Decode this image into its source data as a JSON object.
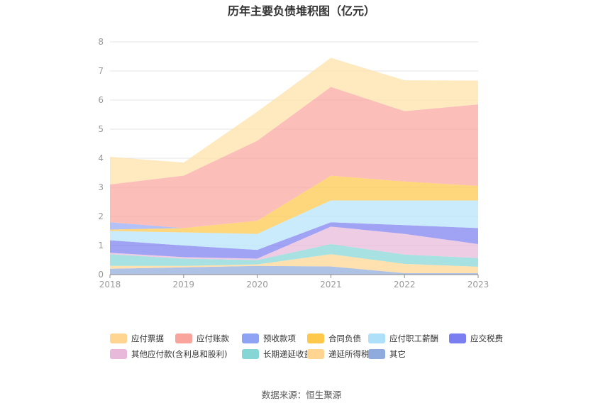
{
  "chart_data": {
    "type": "area",
    "stacked": true,
    "title": "历年主要负债堆积图（亿元）",
    "xlabel": "",
    "ylabel": "",
    "x": [
      "2018",
      "2019",
      "2020",
      "2021",
      "2022",
      "2023"
    ],
    "ylim": [
      0,
      8
    ],
    "yticks": [
      "0",
      "1",
      "2",
      "3",
      "4",
      "5",
      "6",
      "7",
      "8"
    ],
    "grid": true,
    "legend_position": "bottom",
    "series": [
      {
        "name": "其它",
        "color": "#8faadc",
        "values": [
          0.2,
          0.25,
          0.3,
          0.28,
          0.05,
          0.05
        ]
      },
      {
        "name": "递延所得税负债",
        "color": "#ffd591",
        "values": [
          0.1,
          0.05,
          0.05,
          0.42,
          0.32,
          0.22
        ]
      },
      {
        "name": "长期递延收益",
        "color": "#86d6d6",
        "values": [
          0.4,
          0.25,
          0.15,
          0.35,
          0.32,
          0.3
        ]
      },
      {
        "name": "其他应付款(含利息和股利)",
        "color": "#e8b9da",
        "values": [
          0.05,
          0.05,
          0.05,
          0.6,
          0.71,
          0.48
        ]
      },
      {
        "name": "应交税费",
        "color": "#7b7ef0",
        "values": [
          0.43,
          0.4,
          0.3,
          0.15,
          0.3,
          0.55
        ]
      },
      {
        "name": "应付职工薪酬",
        "color": "#b5e3fb",
        "values": [
          0.32,
          0.45,
          0.55,
          0.75,
          0.85,
          0.95
        ]
      },
      {
        "name": "合同负债",
        "color": "#fec84b",
        "values": [
          0.05,
          0.15,
          0.45,
          0.85,
          0.65,
          0.5
        ]
      },
      {
        "name": "预收款项",
        "color": "#94aaf5",
        "values": [
          0.25,
          0.0,
          0.0,
          0.0,
          0.0,
          0.0
        ]
      },
      {
        "name": "应付账款",
        "color": "#f9a59d",
        "values": [
          1.3,
          1.8,
          2.75,
          3.05,
          2.42,
          2.8
        ]
      },
      {
        "name": "应付票据",
        "color": "#ffe0a6",
        "values": [
          0.95,
          0.45,
          1.0,
          1.0,
          1.06,
          0.82
        ]
      }
    ]
  },
  "legend_order": [
    {
      "name": "应付票据",
      "color": "#ffd591"
    },
    {
      "name": "应付账款",
      "color": "#f9a59d"
    },
    {
      "name": "预收款项",
      "color": "#8fa3f5"
    },
    {
      "name": "合同负债",
      "color": "#fec84b"
    },
    {
      "name": "应付职工薪酬",
      "color": "#aee0f9"
    },
    {
      "name": "应交税费",
      "color": "#7b7ef0"
    },
    {
      "name": "其他应付款(含利息和股利)",
      "color": "#e8b9da"
    },
    {
      "name": "长期递延收益",
      "color": "#86d6d6"
    },
    {
      "name": "递延所得税负债",
      "color": "#ffd591"
    },
    {
      "name": "其它",
      "color": "#8faadc"
    }
  ],
  "source": "数据来源：恒生聚源"
}
